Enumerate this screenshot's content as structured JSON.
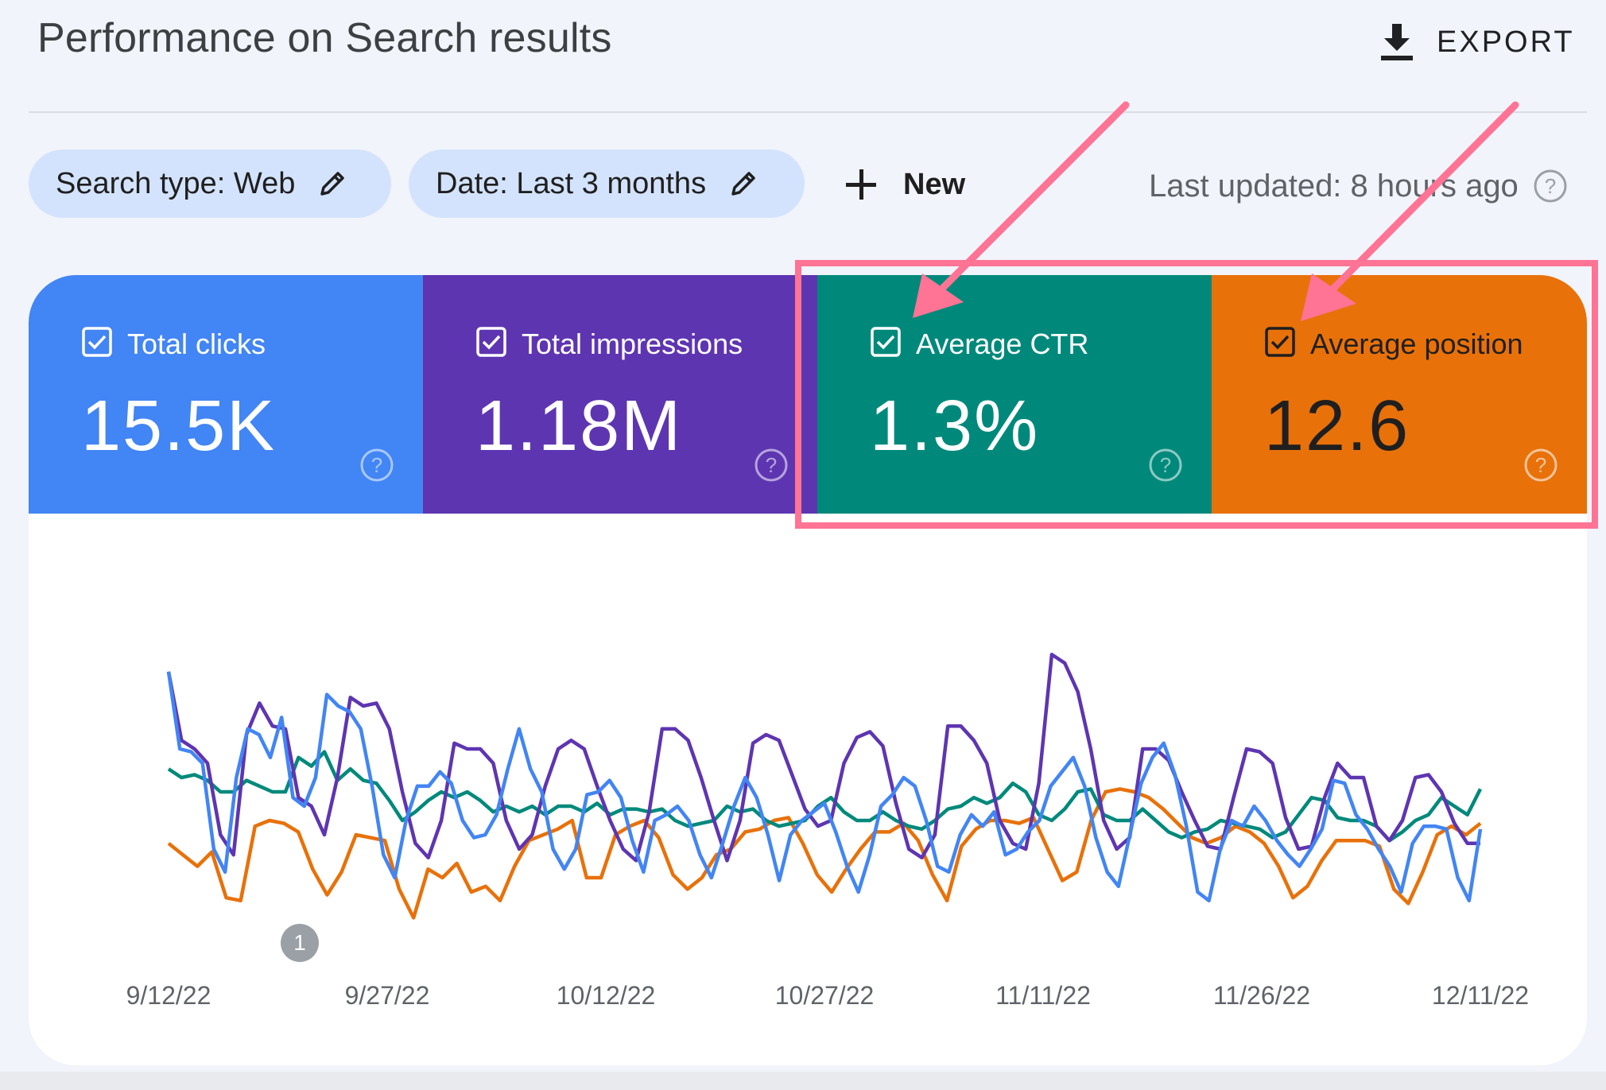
{
  "header": {
    "title": "Performance on Search results",
    "export_label": "EXPORT"
  },
  "filters": {
    "search_type": "Search type: Web",
    "date": "Date: Last 3 months",
    "new_label": "New",
    "last_updated": "Last updated: 8 hours ago"
  },
  "metrics": [
    {
      "label": "Total clicks",
      "value": "15.5K",
      "color": "#4285f4",
      "text_color": "#ffffff",
      "checked": true
    },
    {
      "label": "Total impressions",
      "value": "1.18M",
      "color": "#5e35b1",
      "text_color": "#ffffff",
      "checked": true
    },
    {
      "label": "Average CTR",
      "value": "1.3%",
      "color": "#00897b",
      "text_color": "#ffffff",
      "checked": true
    },
    {
      "label": "Average position",
      "value": "12.6",
      "color": "#e8710a",
      "text_color": "#1f1f1f",
      "checked": true
    }
  ],
  "annotation": {
    "label": "1"
  },
  "chart_data": {
    "type": "line",
    "x_tick_labels": [
      "9/12/22",
      "9/27/22",
      "10/12/22",
      "10/27/22",
      "11/11/22",
      "11/26/22",
      "12/11/22"
    ],
    "x_range": [
      "9/12/22",
      "12/11/22"
    ],
    "y_axis_visible": false,
    "grid": false,
    "series": [
      {
        "metric": "Total clicks",
        "color": "#4285f4",
        "values": [
          0.82,
          0.55,
          0.54,
          0.5,
          0.2,
          0.12,
          0.45,
          0.62,
          0.6,
          0.52,
          0.66,
          0.38,
          0.35,
          0.45,
          0.74,
          0.7,
          0.68,
          0.62,
          0.42,
          0.18,
          0.1,
          0.3,
          0.42,
          0.42,
          0.47,
          0.43,
          0.3,
          0.24,
          0.25,
          0.32,
          0.48,
          0.62,
          0.48,
          0.4,
          0.2,
          0.13,
          0.2,
          0.39,
          0.4,
          0.44,
          0.38,
          0.23,
          0.12,
          0.3,
          0.32,
          0.35,
          0.3,
          0.18,
          0.1,
          0.22,
          0.35,
          0.45,
          0.38,
          0.25,
          0.09,
          0.25,
          0.3,
          0.33,
          0.36,
          0.26,
          0.14,
          0.05,
          0.18,
          0.35,
          0.39,
          0.45,
          0.42,
          0.3,
          0.14,
          0.12,
          0.25,
          0.32,
          0.28,
          0.33,
          0.18,
          0.2,
          0.26,
          0.3,
          0.42,
          0.47,
          0.52,
          0.42,
          0.24,
          0.12,
          0.07,
          0.25,
          0.43,
          0.52,
          0.57,
          0.46,
          0.28,
          0.05,
          0.02,
          0.2,
          0.3,
          0.28,
          0.35,
          0.3,
          0.23,
          0.18,
          0.14,
          0.2,
          0.27,
          0.44,
          0.43,
          0.32,
          0.27,
          0.2,
          0.14,
          0.05,
          0.22,
          0.28,
          0.28,
          0.27,
          0.1,
          0.02,
          0.27
        ]
      },
      {
        "metric": "Total impressions",
        "color": "#5e35b1",
        "values": [
          0.82,
          0.58,
          0.55,
          0.5,
          0.25,
          0.18,
          0.6,
          0.71,
          0.63,
          0.62,
          0.38,
          0.35,
          0.25,
          0.45,
          0.73,
          0.7,
          0.71,
          0.62,
          0.4,
          0.22,
          0.17,
          0.3,
          0.57,
          0.55,
          0.55,
          0.5,
          0.3,
          0.2,
          0.25,
          0.42,
          0.55,
          0.58,
          0.55,
          0.42,
          0.3,
          0.2,
          0.16,
          0.33,
          0.62,
          0.62,
          0.58,
          0.45,
          0.3,
          0.16,
          0.3,
          0.57,
          0.6,
          0.58,
          0.46,
          0.34,
          0.28,
          0.3,
          0.5,
          0.59,
          0.61,
          0.56,
          0.36,
          0.2,
          0.17,
          0.25,
          0.63,
          0.63,
          0.58,
          0.5,
          0.3,
          0.22,
          0.2,
          0.43,
          0.88,
          0.85,
          0.75,
          0.55,
          0.3,
          0.2,
          0.24,
          0.55,
          0.55,
          0.51,
          0.4,
          0.3,
          0.21,
          0.2,
          0.38,
          0.55,
          0.54,
          0.5,
          0.31,
          0.2,
          0.21,
          0.38,
          0.5,
          0.45,
          0.45,
          0.28,
          0.23,
          0.3,
          0.45,
          0.46,
          0.4,
          0.29,
          0.22,
          0.22
        ]
      },
      {
        "metric": "Average CTR",
        "color": "#00897b",
        "values": [
          0.48,
          0.45,
          0.46,
          0.44,
          0.4,
          0.4,
          0.44,
          0.42,
          0.4,
          0.4,
          0.52,
          0.49,
          0.54,
          0.44,
          0.48,
          0.44,
          0.43,
          0.37,
          0.3,
          0.33,
          0.37,
          0.4,
          0.38,
          0.4,
          0.37,
          0.33,
          0.35,
          0.33,
          0.35,
          0.32,
          0.35,
          0.35,
          0.33,
          0.36,
          0.32,
          0.34,
          0.34,
          0.33,
          0.34,
          0.3,
          0.28,
          0.29,
          0.3,
          0.35,
          0.33,
          0.34,
          0.3,
          0.28,
          0.29,
          0.3,
          0.35,
          0.38,
          0.33,
          0.3,
          0.3,
          0.33,
          0.3,
          0.28,
          0.27,
          0.3,
          0.34,
          0.35,
          0.38,
          0.36,
          0.38,
          0.43,
          0.4,
          0.32,
          0.3,
          0.34,
          0.4,
          0.41,
          0.32,
          0.3,
          0.3,
          0.34,
          0.3,
          0.26,
          0.24,
          0.26,
          0.27,
          0.3,
          0.29,
          0.28,
          0.27,
          0.24,
          0.26,
          0.32,
          0.38,
          0.37,
          0.31,
          0.3,
          0.3,
          0.28,
          0.23,
          0.26,
          0.3,
          0.32,
          0.38,
          0.35,
          0.32,
          0.41
        ]
      },
      {
        "metric": "Average position",
        "color": "#e8710a",
        "values": [
          0.22,
          0.18,
          0.14,
          0.19,
          0.03,
          0.02,
          0.28,
          0.3,
          0.29,
          0.26,
          0.13,
          0.04,
          0.12,
          0.25,
          0.24,
          0.23,
          0.06,
          -0.04,
          0.13,
          0.1,
          0.15,
          0.05,
          0.07,
          0.02,
          0.14,
          0.23,
          0.25,
          0.27,
          0.3,
          0.1,
          0.1,
          0.25,
          0.28,
          0.3,
          0.24,
          0.11,
          0.06,
          0.1,
          0.18,
          0.2,
          0.26,
          0.27,
          0.3,
          0.31,
          0.22,
          0.11,
          0.05,
          0.13,
          0.2,
          0.26,
          0.26,
          0.29,
          0.23,
          0.11,
          0.02,
          0.21,
          0.27,
          0.3,
          0.3,
          0.29,
          0.31,
          0.2,
          0.09,
          0.12,
          0.3,
          0.4,
          0.41,
          0.4,
          0.38,
          0.34,
          0.29,
          0.24,
          0.22,
          0.24,
          0.28,
          0.26,
          0.22,
          0.14,
          0.03,
          0.07,
          0.16,
          0.23,
          0.23,
          0.23,
          0.21,
          0.06,
          0.01,
          0.12,
          0.25,
          0.28,
          0.25,
          0.29
        ]
      }
    ]
  }
}
